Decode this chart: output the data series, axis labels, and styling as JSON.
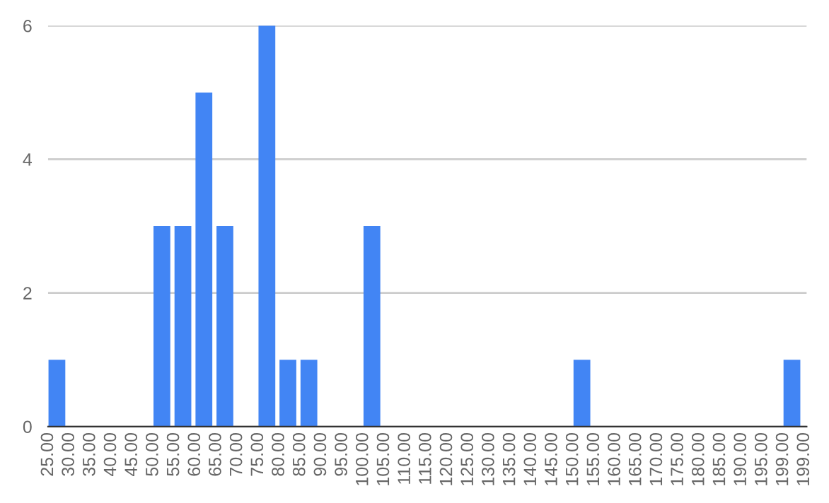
{
  "chart_data": {
    "type": "bar",
    "color": "#4285f4",
    "categories": [
      "25.00",
      "30.00",
      "35.00",
      "40.00",
      "45.00",
      "50.00",
      "55.00",
      "60.00",
      "65.00",
      "70.00",
      "75.00",
      "80.00",
      "85.00",
      "90.00",
      "95.00",
      "100.00",
      "105.00",
      "110.00",
      "115.00",
      "120.00",
      "125.00",
      "130.00",
      "135.00",
      "140.00",
      "145.00",
      "150.00",
      "155.00",
      "160.00",
      "165.00",
      "170.00",
      "175.00",
      "180.00",
      "185.00",
      "190.00",
      "195.00",
      "199.00",
      "199.00"
    ],
    "values": [
      1,
      0,
      0,
      0,
      0,
      3,
      3,
      5,
      3,
      0,
      6,
      1,
      1,
      0,
      0,
      3,
      0,
      0,
      0,
      0,
      0,
      0,
      0,
      0,
      0,
      1,
      0,
      0,
      0,
      0,
      0,
      0,
      0,
      0,
      0,
      1,
      null
    ],
    "ylim": [
      0,
      6
    ],
    "yticks": [
      0,
      2,
      4,
      6
    ],
    "grid": "y"
  }
}
